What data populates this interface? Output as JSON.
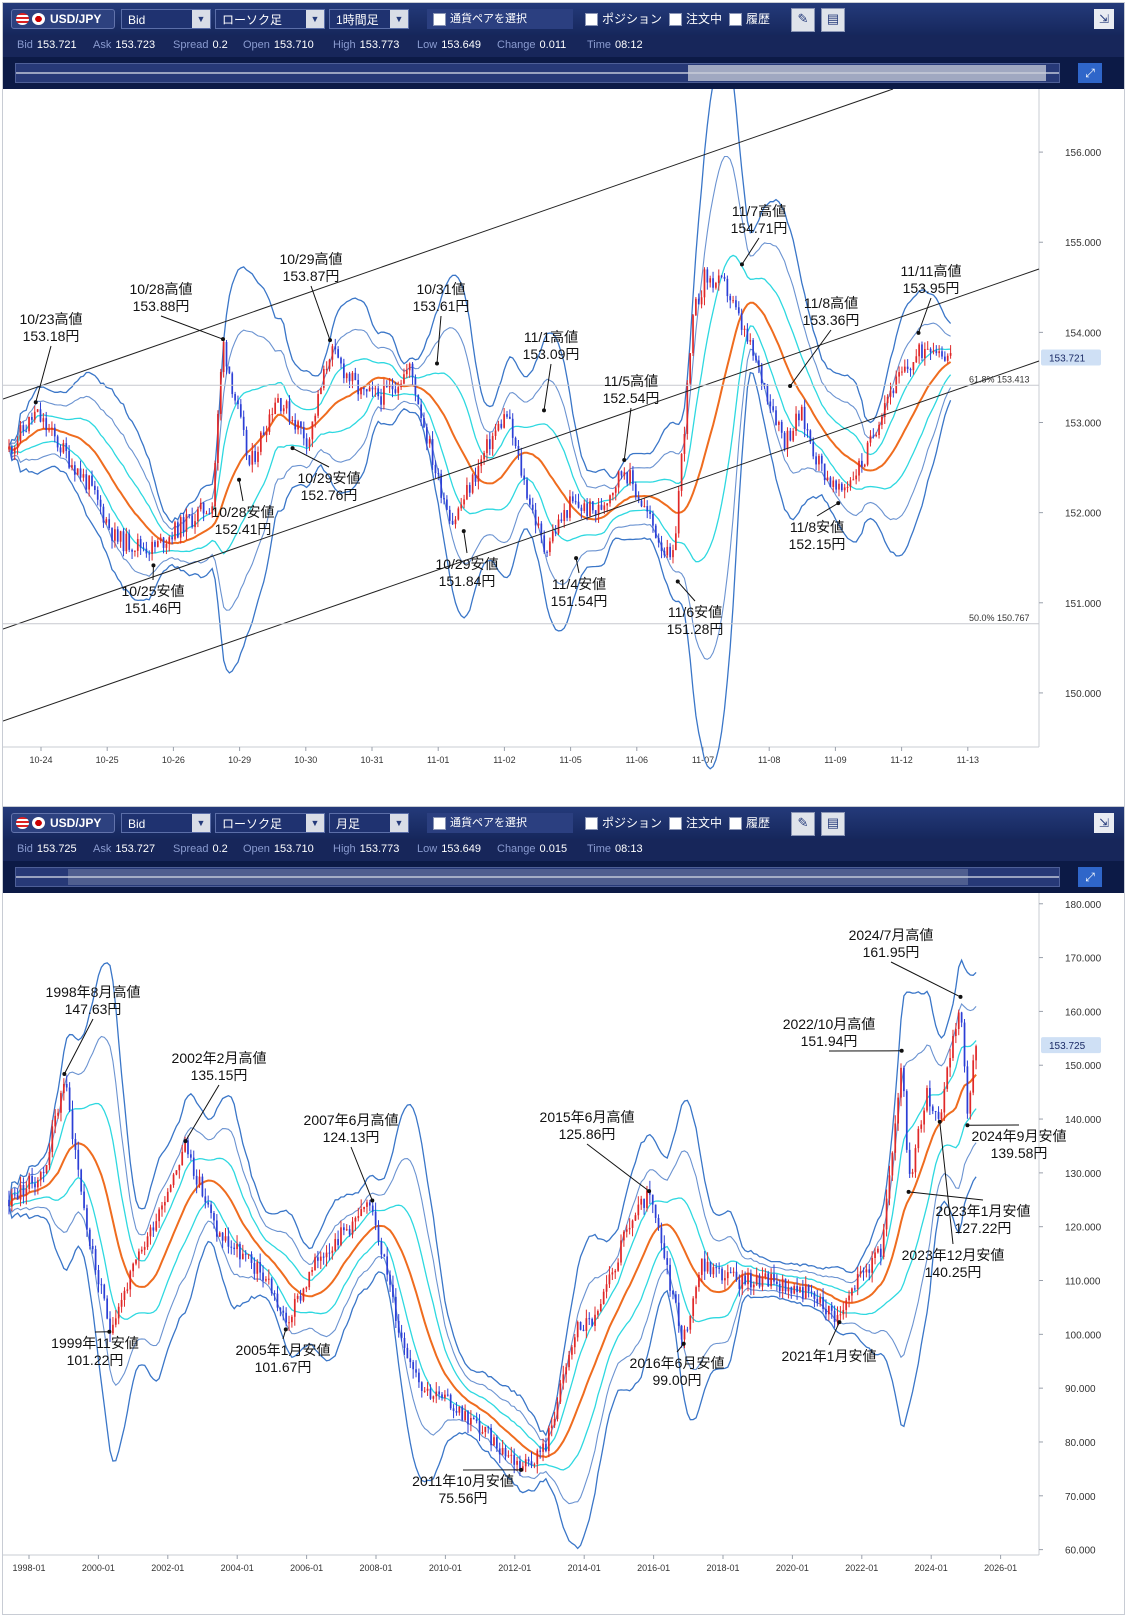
{
  "panels": [
    {
      "toolbar": {
        "pair": "USD/JPY",
        "price_type": "Bid",
        "chart_style": "ローソク足",
        "timeframe": "1時間足",
        "pair_select_label": "通貨ペアを選択",
        "position_label": "ポジション",
        "order_label": "注文中",
        "history_label": "履歴"
      },
      "quote": {
        "bid_label": "Bid",
        "bid": "153.721",
        "ask_label": "Ask",
        "ask": "153.723",
        "spread_label": "Spread",
        "spread": "0.2",
        "open_label": "Open",
        "open": "153.710",
        "high_label": "High",
        "high": "153.773",
        "low_label": "Low",
        "low": "153.649",
        "change_label": "Change",
        "change": "0.011",
        "time_label": "Time",
        "time": "08:12"
      },
      "current_price_label": "153.721",
      "fib_labels": [
        {
          "text": "61.8%  153.413",
          "value": 153.413
        },
        {
          "text": "50.0%  150.767",
          "value": 150.767
        }
      ]
    },
    {
      "toolbar": {
        "pair": "USD/JPY",
        "price_type": "Bid",
        "chart_style": "ローソク足",
        "timeframe": "月足",
        "pair_select_label": "通貨ペアを選択",
        "position_label": "ポジション",
        "order_label": "注文中",
        "history_label": "履歴"
      },
      "quote": {
        "bid_label": "Bid",
        "bid": "153.725",
        "ask_label": "Ask",
        "ask": "153.727",
        "spread_label": "Spread",
        "spread": "0.2",
        "open_label": "Open",
        "open": "153.710",
        "high_label": "High",
        "high": "153.773",
        "low_label": "Low",
        "low": "153.649",
        "change_label": "Change",
        "change": "0.015",
        "time_label": "Time",
        "time": "08:13"
      },
      "current_price_label": "153.725"
    }
  ],
  "chart_data": [
    {
      "type": "candlestick",
      "timeframe": "1時間足",
      "ylim": [
        149.4,
        156.7
      ],
      "y_ticks": [
        "150.000",
        "151.000",
        "152.000",
        "153.000",
        "154.000",
        "155.000",
        "156.000"
      ],
      "x_ticks": [
        "10-24",
        "10-25",
        "10-26",
        "10-29",
        "10-30",
        "10-31",
        "11-01",
        "11-02",
        "11-05",
        "11-06",
        "11-07",
        "11-08",
        "11-09",
        "11-12",
        "11-13"
      ],
      "last_price": 153.721,
      "price_path": [
        [
          0,
          152.7
        ],
        [
          0.5,
          153.1
        ],
        [
          1,
          152.7
        ],
        [
          1.5,
          152.3
        ],
        [
          2,
          151.7
        ],
        [
          2.7,
          151.6
        ],
        [
          3.1,
          151.8
        ],
        [
          3.8,
          152.1
        ],
        [
          4,
          153.9
        ],
        [
          4.5,
          152.5
        ],
        [
          5,
          153.3
        ],
        [
          5.6,
          152.8
        ],
        [
          6,
          153.8
        ],
        [
          6.6,
          153.3
        ],
        [
          7,
          153.3
        ],
        [
          7.5,
          153.6
        ],
        [
          8,
          152.4
        ],
        [
          8.3,
          151.9
        ],
        [
          8.7,
          152.4
        ],
        [
          9,
          152.8
        ],
        [
          9.3,
          153.1
        ],
        [
          9.6,
          152.4
        ],
        [
          10,
          151.6
        ],
        [
          10.5,
          152.1
        ],
        [
          11,
          152.0
        ],
        [
          11.5,
          152.5
        ],
        [
          12,
          151.9
        ],
        [
          12.4,
          151.4
        ],
        [
          12.8,
          154.2
        ],
        [
          13,
          154.6
        ],
        [
          13.4,
          154.5
        ],
        [
          13.8,
          153.9
        ],
        [
          14.2,
          153.3
        ],
        [
          14.5,
          152.8
        ],
        [
          14.8,
          153.1
        ],
        [
          15.1,
          152.6
        ],
        [
          15.5,
          152.2
        ],
        [
          16,
          152.6
        ],
        [
          16.4,
          153.3
        ],
        [
          16.8,
          153.6
        ],
        [
          17.2,
          153.9
        ],
        [
          17.6,
          153.72
        ]
      ],
      "annotations": [
        {
          "label": "10/23高値",
          "value": "153.18円",
          "x": 0.5,
          "y": 153.18
        },
        {
          "label": "10/28高値",
          "value": "153.88円",
          "x": 4.0,
          "y": 153.88
        },
        {
          "label": "10/29高値",
          "value": "153.87円",
          "x": 6.0,
          "y": 153.87
        },
        {
          "label": "10/31値",
          "value": "153.61円",
          "x": 8.0,
          "y": 153.61
        },
        {
          "label": "11/1高値",
          "value": "153.09円",
          "x": 10.0,
          "y": 153.09
        },
        {
          "label": "11/5高値",
          "value": "152.54円",
          "x": 11.5,
          "y": 152.54
        },
        {
          "label": "11/7高値",
          "value": "154.71円",
          "x": 13.7,
          "y": 154.71
        },
        {
          "label": "11/8高値",
          "value": "153.36円",
          "x": 14.6,
          "y": 153.36
        },
        {
          "label": "11/11高値",
          "value": "153.95円",
          "x": 17.0,
          "y": 153.95
        },
        {
          "label": "10/25安値",
          "value": "151.46円",
          "x": 2.7,
          "y": 151.46
        },
        {
          "label": "10/28安値",
          "value": "152.41円",
          "x": 4.3,
          "y": 152.41
        },
        {
          "label": "10/29安値",
          "value": "152.76円",
          "x": 5.3,
          "y": 152.76
        },
        {
          "label": "10/29安値",
          "value": "151.84円",
          "x": 8.5,
          "y": 151.84
        },
        {
          "label": "11/4安値",
          "value": "151.54円",
          "x": 10.6,
          "y": 151.54
        },
        {
          "label": "11/6安値",
          "value": "151.28円",
          "x": 12.5,
          "y": 151.28
        },
        {
          "label": "11/8安値",
          "value": "152.15円",
          "x": 15.5,
          "y": 152.15
        }
      ]
    },
    {
      "type": "candlestick",
      "timeframe": "月足",
      "ylim": [
        59,
        182
      ],
      "y_ticks": [
        "60.000",
        "70.000",
        "80.000",
        "90.000",
        "100.000",
        "110.000",
        "120.000",
        "130.000",
        "140.000",
        "150.000",
        "160.000",
        "170.000",
        "180.000"
      ],
      "x_ticks": [
        "1998-01",
        "2000-01",
        "2002-01",
        "2004-01",
        "2006-01",
        "2008-01",
        "2010-01",
        "2012-01",
        "2014-01",
        "2016-01",
        "2018-01",
        "2020-01",
        "2022-01",
        "2024-01",
        "2026-01"
      ],
      "last_price": 153.725,
      "price_path": [
        [
          1997.0,
          125
        ],
        [
          1998.0,
          130
        ],
        [
          1998.6,
          147.6
        ],
        [
          1999.3,
          118
        ],
        [
          1999.9,
          101.2
        ],
        [
          2001.0,
          118
        ],
        [
          2002.1,
          135.2
        ],
        [
          2003.0,
          119
        ],
        [
          2004.5,
          110
        ],
        [
          2005.0,
          101.7
        ],
        [
          2006.0,
          115
        ],
        [
          2007.5,
          124.1
        ],
        [
          2008.3,
          100
        ],
        [
          2009.0,
          90
        ],
        [
          2010.0,
          86
        ],
        [
          2011.8,
          75.6
        ],
        [
          2012.5,
          79
        ],
        [
          2013.4,
          101
        ],
        [
          2014.0,
          103
        ],
        [
          2014.9,
          120
        ],
        [
          2015.5,
          125.9
        ],
        [
          2016.5,
          99.0
        ],
        [
          2017.0,
          113
        ],
        [
          2018.0,
          110
        ],
        [
          2019.0,
          110
        ],
        [
          2020.0,
          108
        ],
        [
          2021.0,
          103.0
        ],
        [
          2021.5,
          110
        ],
        [
          2022.2,
          115
        ],
        [
          2022.8,
          151.9
        ],
        [
          2023.0,
          127.2
        ],
        [
          2023.5,
          145
        ],
        [
          2023.9,
          140.3
        ],
        [
          2024.5,
          162.0
        ],
        [
          2024.7,
          139.6
        ],
        [
          2024.9,
          153.7
        ]
      ],
      "annotations": [
        {
          "label": "1998年8月高値",
          "value": "147.63円",
          "x": 1998.6,
          "y": 147.63
        },
        {
          "label": "2002年2月高値",
          "value": "135.15円",
          "x": 2002.1,
          "y": 135.15
        },
        {
          "label": "2007年6月高値",
          "value": "124.13円",
          "x": 2007.5,
          "y": 124.13
        },
        {
          "label": "2015年6月高値",
          "value": "125.86円",
          "x": 2015.5,
          "y": 125.86
        },
        {
          "label": "2022/10月高値",
          "value": "151.94円",
          "x": 2022.8,
          "y": 151.94
        },
        {
          "label": "2024/7月高値",
          "value": "161.95円",
          "x": 2024.5,
          "y": 161.95
        },
        {
          "label": "1999年11安値",
          "value": "101.22円",
          "x": 1999.9,
          "y": 101.22
        },
        {
          "label": "2005年1月安値",
          "value": "101.67円",
          "x": 2005.0,
          "y": 101.67
        },
        {
          "label": "2011年10月安値",
          "value": "75.56円",
          "x": 2011.8,
          "y": 75.56
        },
        {
          "label": "2016年6月安値",
          "value": "99.00円",
          "x": 2016.5,
          "y": 99.0
        },
        {
          "label": "2021年1月安値",
          "value": "",
          "x": 2021.0,
          "y": 103.0
        },
        {
          "label": "2023年1月安値",
          "value": "127.22円",
          "x": 2023.0,
          "y": 127.22
        },
        {
          "label": "2023年12月安値",
          "value": "140.25円",
          "x": 2023.9,
          "y": 140.25
        },
        {
          "label": "2024年9月安値",
          "value": "139.58円",
          "x": 2024.7,
          "y": 139.58
        }
      ]
    }
  ]
}
